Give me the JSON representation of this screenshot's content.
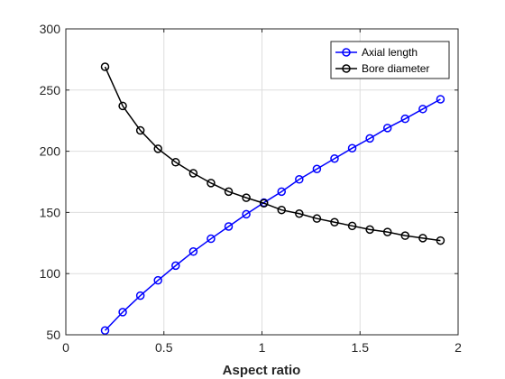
{
  "chart_data": {
    "type": "line",
    "title": "",
    "xlabel": "Aspect ratio",
    "ylabel": "",
    "xlim": [
      0,
      2
    ],
    "ylim": [
      50,
      300
    ],
    "xticks": [
      0,
      0.5,
      1,
      1.5,
      2
    ],
    "xtick_labels": [
      "0",
      "0.5",
      "1",
      "1.5",
      "2"
    ],
    "yticks": [
      50,
      100,
      150,
      200,
      250,
      300
    ],
    "ytick_labels": [
      "50",
      "100",
      "150",
      "200",
      "250",
      "300"
    ],
    "grid": true,
    "legend_position": "top-right",
    "x": [
      0.2,
      0.29,
      0.38,
      0.47,
      0.56,
      0.65,
      0.74,
      0.83,
      0.92,
      1.01,
      1.1,
      1.19,
      1.28,
      1.37,
      1.46,
      1.55,
      1.64,
      1.73,
      1.82,
      1.91
    ],
    "series": [
      {
        "name": "Axial length",
        "color": "#0000ff",
        "marker": "circle",
        "values": [
          53.5,
          68.5,
          82,
          94.5,
          106.5,
          118,
          128.5,
          138.5,
          148.5,
          158,
          167,
          177,
          185.5,
          194,
          202.5,
          210.5,
          219,
          226.5,
          234.5,
          242.5
        ]
      },
      {
        "name": "Bore diameter",
        "color": "#000000",
        "marker": "circle",
        "values": [
          269,
          237,
          217,
          202,
          191,
          182,
          174,
          167,
          162,
          157.5,
          152,
          149,
          145,
          142,
          139,
          136,
          134,
          131,
          129,
          127
        ]
      }
    ]
  }
}
